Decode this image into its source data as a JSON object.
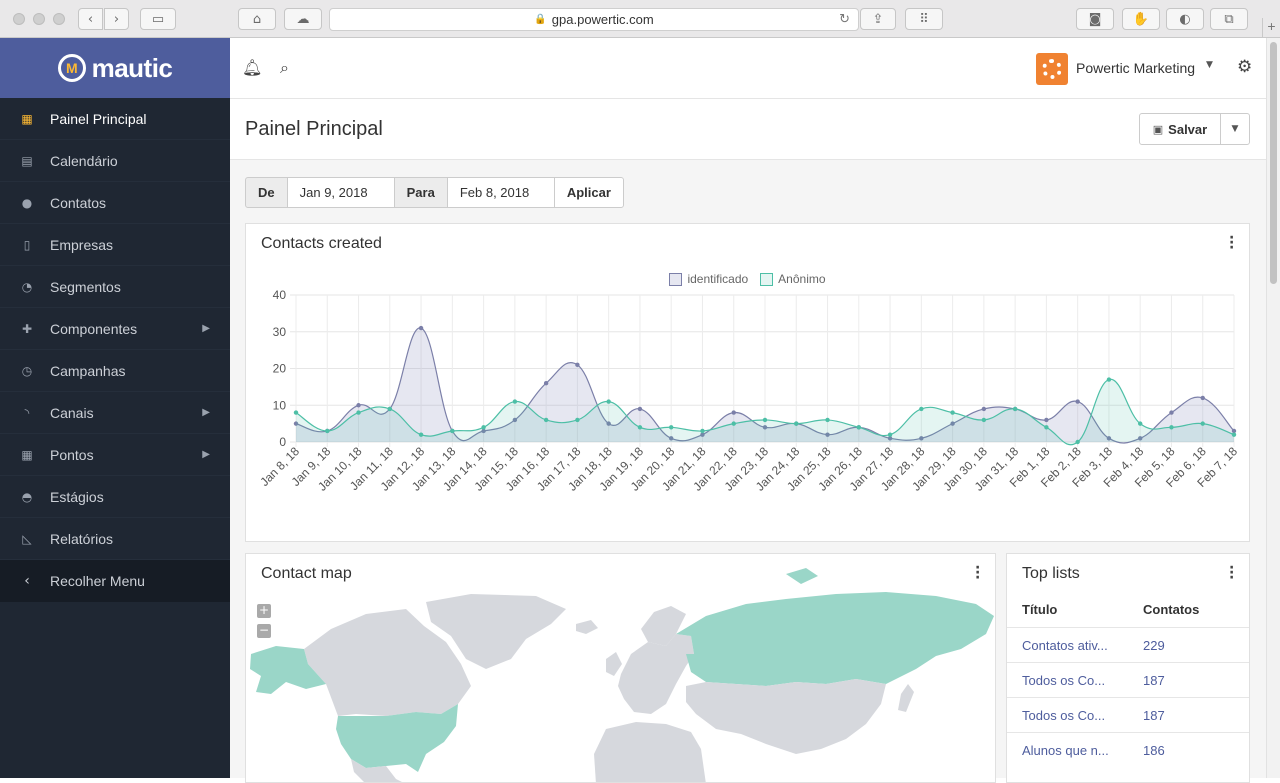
{
  "browser": {
    "url": "gpa.powertic.com",
    "plus_tab": "+"
  },
  "brand": {
    "name": "mautic"
  },
  "sidebar": {
    "items": [
      {
        "label": "Painel Principal",
        "icon": "dashboard-icon",
        "glyph": "▦",
        "active": true
      },
      {
        "label": "Calendário",
        "icon": "calendar-icon",
        "glyph": "▤"
      },
      {
        "label": "Contatos",
        "icon": "user-icon",
        "glyph": "●"
      },
      {
        "label": "Empresas",
        "icon": "building-icon",
        "glyph": "▯"
      },
      {
        "label": "Segmentos",
        "icon": "pie-chart-icon",
        "glyph": "◔"
      },
      {
        "label": "Componentes",
        "icon": "puzzle-icon",
        "glyph": "✚",
        "submenu": true
      },
      {
        "label": "Campanhas",
        "icon": "clock-icon",
        "glyph": "◷"
      },
      {
        "label": "Canais",
        "icon": "rss-icon",
        "glyph": "◝",
        "submenu": true
      },
      {
        "label": "Pontos",
        "icon": "calculator-icon",
        "glyph": "▦",
        "submenu": true
      },
      {
        "label": "Estágios",
        "icon": "gauge-icon",
        "glyph": "◓"
      },
      {
        "label": "Relatórios",
        "icon": "line-chart-icon",
        "glyph": "◺"
      }
    ],
    "collapse_label": "Recolher Menu"
  },
  "topbar": {
    "user_name": "Powertic Marketing"
  },
  "page": {
    "title": "Painel Principal",
    "save_label": "Salvar"
  },
  "date_filter": {
    "from_label": "De",
    "from_value": "Jan 9, 2018",
    "to_label": "Para",
    "to_value": "Feb 8, 2018",
    "apply_label": "Aplicar"
  },
  "contacts_panel": {
    "title": "Contacts created"
  },
  "chart_data": {
    "type": "line",
    "title": "Contacts created",
    "categories": [
      "Jan 8, 18",
      "Jan 9, 18",
      "Jan 10, 18",
      "Jan 11, 18",
      "Jan 12, 18",
      "Jan 13, 18",
      "Jan 14, 18",
      "Jan 15, 18",
      "Jan 16, 18",
      "Jan 17, 18",
      "Jan 18, 18",
      "Jan 19, 18",
      "Jan 20, 18",
      "Jan 21, 18",
      "Jan 22, 18",
      "Jan 23, 18",
      "Jan 24, 18",
      "Jan 25, 18",
      "Jan 26, 18",
      "Jan 27, 18",
      "Jan 28, 18",
      "Jan 29, 18",
      "Jan 30, 18",
      "Jan 31, 18",
      "Feb 1, 18",
      "Feb 2, 18",
      "Feb 3, 18",
      "Feb 4, 18",
      "Feb 5, 18",
      "Feb 6, 18",
      "Feb 7, 18"
    ],
    "series": [
      {
        "name": "identificado",
        "color": "#7b7fa8",
        "fill": "rgba(140,144,190,0.22)",
        "values": [
          5,
          3,
          10,
          9,
          31,
          3,
          3,
          6,
          16,
          21,
          5,
          9,
          1,
          2,
          8,
          4,
          5,
          2,
          4,
          1,
          1,
          5,
          9,
          9,
          6,
          11,
          1,
          1,
          8,
          12,
          3
        ]
      },
      {
        "name": "Anônimo",
        "color": "#4dbfa6",
        "fill": "rgba(77,191,166,0.15)",
        "values": [
          8,
          3,
          8,
          9,
          2,
          3,
          4,
          11,
          6,
          6,
          11,
          4,
          4,
          3,
          5,
          6,
          5,
          6,
          4,
          2,
          9,
          8,
          6,
          9,
          4,
          0,
          17,
          5,
          4,
          5,
          2
        ]
      }
    ],
    "ylim": [
      0,
      40
    ],
    "yticks": [
      0,
      10,
      20,
      30,
      40
    ],
    "grid": true,
    "legend": "top-center"
  },
  "map_panel": {
    "title": "Contact map",
    "zoom_in": "+",
    "zoom_out": "−"
  },
  "toplists": {
    "title": "Top lists",
    "col_title": "Título",
    "col_count": "Contatos",
    "rows": [
      {
        "title": "Contatos ativ...",
        "count": "229"
      },
      {
        "title": "Todos os Co...",
        "count": "187"
      },
      {
        "title": "Todos os Co...",
        "count": "187"
      },
      {
        "title": "Alunos que n...",
        "count": "186"
      }
    ]
  }
}
